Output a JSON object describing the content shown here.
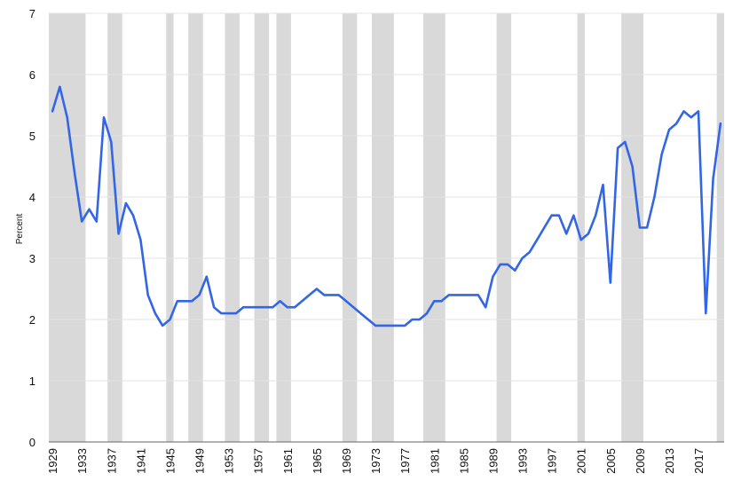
{
  "chart_data": {
    "type": "line",
    "title": "",
    "xlabel": "",
    "ylabel": "Percent",
    "xlim": [
      1929,
      2019
    ],
    "ylim": [
      0,
      7
    ],
    "yticks": [
      0,
      1,
      2,
      3,
      4,
      5,
      6,
      7
    ],
    "xticks": [
      1929,
      1933,
      1937,
      1941,
      1945,
      1949,
      1953,
      1957,
      1961,
      1965,
      1969,
      1973,
      1977,
      1981,
      1985,
      1989,
      1993,
      1997,
      2001,
      2005,
      2009,
      2013,
      2017
    ],
    "grid": true,
    "series_color": "#3366e6",
    "recession_color": "#d9d9d9",
    "recessions": [
      [
        1929,
        1933
      ],
      [
        1937,
        1938
      ],
      [
        1945,
        1945
      ],
      [
        1948,
        1949
      ],
      [
        1953,
        1954
      ],
      [
        1957,
        1958
      ],
      [
        1960,
        1961
      ],
      [
        1969,
        1970
      ],
      [
        1973,
        1975
      ],
      [
        1980,
        1982
      ],
      [
        1990,
        1991
      ],
      [
        2001,
        2001
      ],
      [
        2007,
        2009
      ],
      [
        2020,
        2020
      ]
    ],
    "x": [
      1929,
      1930,
      1931,
      1932,
      1933,
      1934,
      1935,
      1936,
      1937,
      1938,
      1939,
      1940,
      1941,
      1942,
      1943,
      1944,
      1945,
      1946,
      1947,
      1948,
      1949,
      1950,
      1951,
      1952,
      1953,
      1954,
      1955,
      1956,
      1957,
      1958,
      1959,
      1960,
      1961,
      1962,
      1963,
      1964,
      1965,
      1966,
      1967,
      1968,
      1969,
      1970,
      1971,
      1972,
      1973,
      1974,
      1975,
      1976,
      1977,
      1978,
      1979,
      1980,
      1981,
      1982,
      1983,
      1984,
      1985,
      1986,
      1987,
      1988,
      1989,
      1990,
      1991,
      1992,
      1993,
      1994,
      1995,
      1996,
      1997,
      1998,
      1999,
      2000,
      2001,
      2002,
      2003,
      2004,
      2005,
      2006,
      2007,
      2008,
      2009,
      2010,
      2011,
      2012,
      2013,
      2014,
      2015,
      2016,
      2017,
      2018,
      2019,
      2020
    ],
    "y": [
      5.4,
      5.8,
      5.3,
      4.4,
      3.6,
      3.8,
      3.6,
      5.3,
      4.9,
      3.4,
      3.9,
      3.7,
      3.3,
      2.4,
      2.1,
      1.9,
      2.0,
      2.3,
      2.3,
      2.3,
      2.4,
      2.7,
      2.2,
      2.1,
      2.1,
      2.1,
      2.2,
      2.2,
      2.2,
      2.2,
      2.2,
      2.3,
      2.2,
      2.2,
      2.3,
      2.4,
      2.5,
      2.4,
      2.4,
      2.4,
      2.3,
      2.2,
      2.1,
      2.0,
      1.9,
      1.9,
      1.9,
      1.9,
      1.9,
      2.0,
      2.0,
      2.1,
      2.3,
      2.3,
      2.4,
      2.4,
      2.4,
      2.4,
      2.4,
      2.2,
      2.7,
      2.9,
      2.9,
      2.8,
      3.0,
      3.1,
      3.3,
      3.5,
      3.7,
      3.7,
      3.4,
      3.7,
      3.3,
      3.4,
      3.7,
      4.2,
      2.6,
      4.8,
      4.9,
      4.5,
      3.5,
      3.5,
      4.0,
      4.7,
      5.1,
      5.2,
      5.4,
      5.3,
      5.4,
      2.1,
      4.3,
      5.2
    ]
  }
}
